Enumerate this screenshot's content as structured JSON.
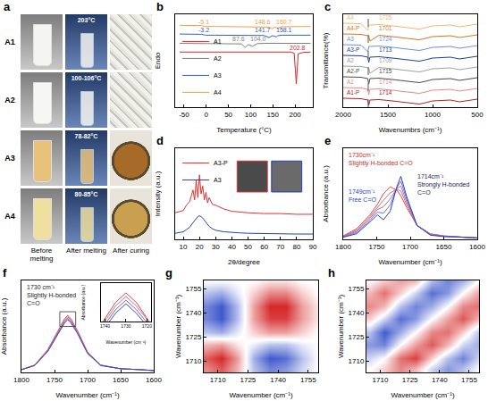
{
  "panel_a": {
    "panel": "a",
    "columns": [
      "Before melting",
      "After melting",
      "After curing"
    ],
    "rows": [
      {
        "label": "A1",
        "temperature": "203°C"
      },
      {
        "label": "A2",
        "temperature": "100-106°C"
      },
      {
        "label": "A3",
        "temperature": "78-82°C"
      },
      {
        "label": "A4",
        "temperature": "80-85°C"
      }
    ]
  },
  "chart_data": [
    {
      "panel": "b",
      "type": "line",
      "x_label": "Temperature (°C)",
      "y_label": "Endo",
      "xlim": [
        -70,
        240
      ],
      "xticks": [
        -50,
        0,
        50,
        100,
        150,
        200
      ],
      "ylim": [
        0,
        16
      ],
      "tick_labels": "x",
      "legend": "bottom left",
      "x": [
        -60,
        -30,
        -10,
        -5,
        0,
        20,
        50,
        80,
        87.6,
        95,
        104,
        115,
        130,
        141.7,
        148.6,
        153,
        158.1,
        160.7,
        170,
        190,
        198,
        202.8,
        207,
        220,
        235
      ],
      "series": [
        {
          "name": "A1",
          "color": "#d62728",
          "values": [
            9.5,
            9.5,
            9.5,
            9.5,
            9.5,
            9.5,
            9.5,
            9.5,
            9.5,
            9.5,
            9.5,
            9.5,
            9.5,
            9.5,
            9.5,
            9.5,
            9.5,
            9.5,
            9.5,
            9.5,
            9.3,
            4.0,
            9.2,
            9.45,
            9.5
          ]
        },
        {
          "name": "A2",
          "color": "#808080",
          "values": [
            11,
            11,
            11,
            11,
            11,
            11,
            11,
            10.9,
            10.3,
            10.8,
            10.5,
            10.95,
            11,
            11,
            11,
            11,
            11,
            11,
            11,
            11,
            11,
            11,
            11,
            11,
            11
          ]
        },
        {
          "name": "A3",
          "color": "#3060c0",
          "values": [
            12.6,
            12.6,
            12.55,
            12.45,
            12.4,
            12.4,
            12.4,
            12.4,
            12.4,
            12.4,
            12.4,
            12.4,
            12.35,
            12.0,
            12.3,
            12.25,
            12.1,
            12.3,
            12.4,
            12.4,
            12.4,
            12.4,
            12.4,
            12.4,
            12.4
          ]
        },
        {
          "name": "A4",
          "color": "#f0a040",
          "values": [
            14.1,
            14.1,
            14.05,
            13.95,
            13.9,
            13.9,
            13.9,
            13.9,
            13.9,
            13.9,
            13.9,
            13.9,
            13.85,
            13.8,
            13.5,
            13.75,
            13.7,
            13.6,
            13.85,
            13.9,
            13.9,
            13.9,
            13.9,
            13.9,
            13.9
          ]
        }
      ],
      "annotations": [
        {
          "text": "-5.1",
          "x": -5,
          "y": 14.75,
          "color": "#f0a040"
        },
        {
          "text": "148.6",
          "x": 128,
          "y": 14.75,
          "color": "#f0a040"
        },
        {
          "text": "160.7",
          "x": 176,
          "y": 14.75,
          "color": "#f0a040"
        },
        {
          "text": "-3.2",
          "x": -5,
          "y": 13.25,
          "color": "#3060c0"
        },
        {
          "text": "141.7",
          "x": 128,
          "y": 13.25,
          "color": "#3060c0"
        },
        {
          "text": "158.1",
          "x": 176,
          "y": 13.25,
          "color": "#3060c0"
        },
        {
          "text": "87.6",
          "x": 72,
          "y": 11.75,
          "color": "#808080"
        },
        {
          "text": "104.0",
          "x": 118,
          "y": 11.75,
          "color": "#808080"
        },
        {
          "text": "202.8",
          "x": 205,
          "y": 10.25,
          "color": "#d62728"
        }
      ]
    },
    {
      "panel": "c",
      "type": "line",
      "x_label": "Wavenumbrs (cm⁻¹)",
      "y_label": "Transmittance(%)",
      "xlim": [
        2000,
        500
      ],
      "xticks": [
        2000,
        1500,
        1000,
        500
      ],
      "ylim": [
        0,
        10.4
      ],
      "tick_labels": "x",
      "vline": 1720,
      "x": [
        2000,
        1800,
        1725,
        1714,
        1701,
        1600,
        1450,
        1250,
        1150,
        1100,
        1000,
        800,
        700,
        500
      ],
      "series": [
        {
          "name": "A1-P",
          "color": "#b22222",
          "peak": 1714,
          "values": [
            1.0,
            0.95,
            0.8,
            0.2,
            0.8,
            0.85,
            0.7,
            0.5,
            0.35,
            0.45,
            0.7,
            0.8,
            0.6,
            0.9
          ]
        },
        {
          "name": "A1",
          "color": "#e98a80",
          "peak": 1714,
          "values": [
            2.2,
            2.15,
            2.0,
            1.4,
            2.0,
            2.05,
            1.9,
            1.7,
            1.55,
            1.65,
            1.9,
            2.0,
            1.8,
            2.1
          ]
        },
        {
          "name": "A2-P",
          "color": "#4a4a4a",
          "peak": 1715,
          "values": [
            3.4,
            3.35,
            3.2,
            2.6,
            3.2,
            3.25,
            3.1,
            2.9,
            2.75,
            2.85,
            3.1,
            3.2,
            3.0,
            3.3
          ]
        },
        {
          "name": "A2",
          "color": "#a0a0a0",
          "peak": 1709,
          "values": [
            4.6,
            4.55,
            4.4,
            4.4,
            3.8,
            4.45,
            4.3,
            4.1,
            3.95,
            4.05,
            4.3,
            4.4,
            4.2,
            4.5
          ]
        },
        {
          "name": "A3-P",
          "color": "#1f3f99",
          "peak": 1713,
          "values": [
            5.8,
            5.75,
            5.6,
            5.0,
            5.6,
            5.65,
            5.5,
            5.3,
            5.15,
            5.25,
            5.5,
            5.6,
            5.4,
            5.7
          ]
        },
        {
          "name": "A3",
          "color": "#7090d8",
          "peak": 1724,
          "values": [
            7.0,
            6.95,
            6.2,
            6.8,
            6.8,
            6.85,
            6.7,
            6.5,
            6.35,
            6.45,
            6.7,
            6.8,
            6.6,
            6.9
          ]
        },
        {
          "name": "A4-P",
          "color": "#d07a20",
          "peak": 1701,
          "values": [
            8.2,
            8.15,
            8.0,
            8.0,
            7.4,
            8.05,
            7.9,
            7.7,
            7.55,
            7.65,
            7.9,
            8.0,
            7.8,
            8.1
          ]
        },
        {
          "name": "A4",
          "color": "#f2b870",
          "peak": 1725,
          "values": [
            9.4,
            9.35,
            8.6,
            9.2,
            9.2,
            9.25,
            9.1,
            8.9,
            8.75,
            8.85,
            9.1,
            9.2,
            9.0,
            9.3
          ]
        }
      ]
    },
    {
      "panel": "d",
      "type": "line",
      "x_label": "2θ/degree",
      "y_label": "Intensity (a.u.)",
      "xlim": [
        5,
        90
      ],
      "xticks": [
        10,
        20,
        30,
        40,
        50,
        60,
        70,
        80,
        90
      ],
      "ylim": [
        0,
        12
      ],
      "tick_labels": "x",
      "legend": "top left",
      "x": [
        5,
        10,
        12,
        14,
        16,
        17,
        18,
        19,
        20,
        21,
        22,
        23,
        24,
        25,
        26,
        28,
        30,
        35,
        40,
        45,
        50,
        60,
        70,
        80,
        90
      ],
      "series": [
        {
          "name": "A3-P",
          "color": "#e03030",
          "values": [
            3.5,
            3.8,
            4.5,
            5.0,
            6.5,
            5.2,
            7.8,
            5.5,
            8.5,
            6.0,
            7.0,
            5.2,
            6.2,
            4.8,
            5.5,
            4.6,
            4.5,
            4.0,
            3.7,
            3.6,
            3.5,
            3.4,
            3.4,
            3.3,
            3.3
          ]
        },
        {
          "name": "A3",
          "color": "#2040c0",
          "values": [
            0.8,
            1.0,
            1.3,
            1.6,
            2.2,
            2.5,
            2.8,
            3.0,
            3.1,
            3.0,
            2.8,
            2.5,
            2.2,
            1.9,
            1.7,
            1.4,
            1.2,
            1.0,
            0.9,
            0.85,
            0.8,
            0.75,
            0.7,
            0.7,
            0.7
          ]
        }
      ]
    },
    {
      "panel": "e",
      "type": "line",
      "x_label": "Wavenumber (cm⁻¹)",
      "y_label": "Absorbance (a.u.)",
      "xlim": [
        1800,
        1600
      ],
      "xticks": [
        1800,
        1750,
        1700,
        1650,
        1600
      ],
      "ylim": [
        0,
        1.3
      ],
      "tick_labels": "x",
      "x": [
        1800,
        1780,
        1760,
        1749,
        1740,
        1730,
        1720,
        1714,
        1705,
        1690,
        1670,
        1650,
        1620,
        1600
      ],
      "series": [
        {
          "color": "#e8423a",
          "values": [
            0.05,
            0.15,
            0.35,
            0.5,
            0.65,
            0.75,
            0.7,
            0.62,
            0.45,
            0.2,
            0.08,
            0.05,
            0.03,
            0.02
          ]
        },
        {
          "color": "#d96a80",
          "values": [
            0.045,
            0.13,
            0.325,
            0.46,
            0.558,
            0.663,
            0.713,
            0.69,
            0.488,
            0.2,
            0.075,
            0.048,
            0.03,
            0.02
          ]
        },
        {
          "color": "#a070b0",
          "values": [
            0.04,
            0.115,
            0.3,
            0.425,
            0.465,
            0.575,
            0.725,
            0.76,
            0.525,
            0.2,
            0.07,
            0.045,
            0.03,
            0.02
          ]
        },
        {
          "color": "#6a78d0",
          "values": [
            0.035,
            0.098,
            0.275,
            0.388,
            0.373,
            0.488,
            0.738,
            0.83,
            0.563,
            0.2,
            0.065,
            0.043,
            0.03,
            0.02
          ]
        },
        {
          "color": "#2840c8",
          "values": [
            0.03,
            0.08,
            0.25,
            0.35,
            0.28,
            0.4,
            0.75,
            0.9,
            0.6,
            0.2,
            0.06,
            0.04,
            0.03,
            0.02
          ]
        }
      ],
      "annotations": [
        {
          "text": [
            "1730cm⁻¹",
            "Slightly H-bonded C=O"
          ],
          "x": 1795,
          "y": 1.27,
          "color": "#c0302a"
        },
        {
          "text": [
            "1714cm⁻¹",
            "Strongly H-bonded",
            "C=O"
          ],
          "x": 1692,
          "y": 0.97,
          "color": "#202060"
        },
        {
          "text": [
            "1749cm⁻¹",
            "Free C=O"
          ],
          "x": 1795,
          "y": 0.75,
          "color": "#2840c8"
        }
      ]
    },
    {
      "panel": "f",
      "type": "line",
      "x_label": "Wavenumber (cm⁻¹)",
      "y_label": "Absorbance (a.u.)",
      "xlim": [
        1800,
        1600
      ],
      "xticks": [
        1800,
        1750,
        1700,
        1650,
        1600
      ],
      "ylim": [
        0,
        1
      ],
      "tick_labels": "x",
      "x": [
        1800,
        1780,
        1760,
        1745,
        1735,
        1730,
        1725,
        1715,
        1700,
        1680,
        1650,
        1620,
        1600
      ],
      "series": [
        {
          "color": "#e04040",
          "values": [
            0.03,
            0.08,
            0.25,
            0.45,
            0.58,
            0.62,
            0.58,
            0.45,
            0.22,
            0.08,
            0.04,
            0.03,
            0.02
          ]
        },
        {
          "color": "#d07090",
          "values": [
            0.03,
            0.08,
            0.24,
            0.44,
            0.565,
            0.605,
            0.565,
            0.44,
            0.215,
            0.08,
            0.04,
            0.03,
            0.02
          ]
        },
        {
          "color": "#9060b0",
          "values": [
            0.03,
            0.075,
            0.235,
            0.43,
            0.55,
            0.59,
            0.55,
            0.43,
            0.21,
            0.075,
            0.04,
            0.03,
            0.02
          ]
        },
        {
          "color": "#3050c0",
          "values": [
            0.03,
            0.075,
            0.23,
            0.42,
            0.535,
            0.575,
            0.535,
            0.42,
            0.205,
            0.075,
            0.04,
            0.03,
            0.02
          ]
        }
      ],
      "annotations": [
        {
          "text": [
            "1730 cm⁻¹",
            "Slightly H-bonded",
            "C=O"
          ],
          "x": 1795,
          "y": 0.98,
          "color": "#222222"
        }
      ],
      "inset": {
        "x_label": "Wavenumber (cm⁻¹)",
        "y_label": "Absorbance (a.u.)",
        "xlim": [
          1742,
          1718
        ],
        "xticks": [
          1740,
          1730,
          1720
        ],
        "ylim": [
          0.5,
          0.66
        ]
      }
    },
    {
      "panel": "g",
      "type": "heatmap",
      "x_label": "Wavenumber (cm⁻¹)",
      "y_label": "Wavenumber (cm⁻¹)",
      "xlim": [
        1703,
        1760
      ],
      "xticks": [
        1710,
        1725,
        1740,
        1755
      ],
      "ylim": [
        1703,
        1760
      ],
      "yticks": [
        1710,
        1725,
        1740,
        1755
      ],
      "x": [
        1705,
        1712,
        1720,
        1728,
        1736,
        1744,
        1752,
        1760
      ],
      "y": [
        1705,
        1712,
        1720,
        1728,
        1736,
        1744,
        1752,
        1760
      ],
      "z": [
        [
          0.5,
          0.7,
          0.3,
          -0.3,
          -0.6,
          -0.5,
          -0.2,
          0
        ],
        [
          0.7,
          0.9,
          0.4,
          -0.4,
          -0.8,
          -0.7,
          -0.3,
          0
        ],
        [
          0.3,
          0.4,
          0.1,
          -0.1,
          -0.3,
          -0.3,
          -0.1,
          0
        ],
        [
          -0.3,
          -0.4,
          -0.1,
          0.2,
          0.4,
          0.4,
          0.2,
          0
        ],
        [
          -0.6,
          -0.8,
          -0.3,
          0.4,
          0.8,
          0.8,
          0.4,
          0.1
        ],
        [
          -0.6,
          -0.8,
          -0.3,
          0.4,
          0.9,
          0.9,
          0.4,
          0.1
        ],
        [
          -0.3,
          -0.4,
          -0.1,
          0.2,
          0.5,
          0.5,
          0.2,
          0
        ],
        [
          0,
          0,
          0,
          0,
          0.1,
          0.1,
          0,
          0
        ]
      ],
      "zlim": [
        -1,
        1
      ]
    },
    {
      "panel": "h",
      "type": "heatmap",
      "x_label": "Wavenumber (cm⁻¹)",
      "y_label": "Wavenumber (cm⁻¹)",
      "xlim": [
        1703,
        1760
      ],
      "xticks": [
        1710,
        1725,
        1740,
        1755
      ],
      "ylim": [
        1703,
        1760
      ],
      "yticks": [
        1710,
        1725,
        1740,
        1755
      ],
      "x": [
        1705,
        1712,
        1720,
        1728,
        1736,
        1744,
        1752,
        1760
      ],
      "y": [
        1705,
        1712,
        1720,
        1728,
        1736,
        1744,
        1752,
        1760
      ],
      "z": [
        [
          0,
          0.2,
          0.5,
          0.3,
          -0.2,
          -0.5,
          -0.3,
          0
        ],
        [
          -0.2,
          0,
          0.6,
          0.8,
          0.2,
          -0.3,
          -0.6,
          -0.2
        ],
        [
          -0.5,
          -0.6,
          0,
          0.4,
          0.7,
          0.3,
          -0.2,
          -0.4
        ],
        [
          -0.3,
          -0.8,
          -0.4,
          0,
          0.5,
          0.6,
          0.2,
          -0.3
        ],
        [
          0.2,
          -0.2,
          -0.7,
          -0.5,
          0,
          0.4,
          0.7,
          0.3
        ],
        [
          0.5,
          0.3,
          -0.3,
          -0.6,
          -0.4,
          0,
          0.5,
          0.6
        ],
        [
          0.3,
          0.6,
          0.2,
          -0.2,
          -0.7,
          -0.5,
          0,
          0.4
        ],
        [
          0,
          0.2,
          0.4,
          0.3,
          -0.3,
          -0.6,
          -0.4,
          0
        ]
      ],
      "zlim": [
        -1,
        1
      ]
    }
  ]
}
